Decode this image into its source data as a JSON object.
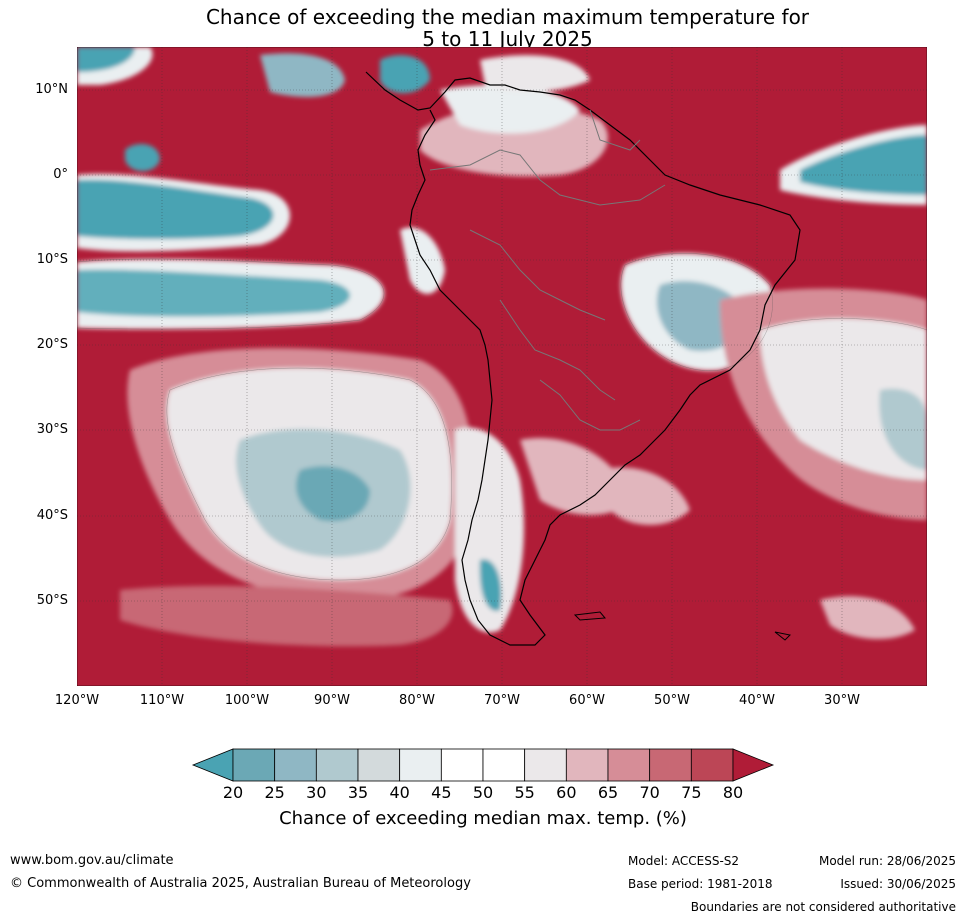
{
  "title": {
    "line1": "Chance of exceeding the median maximum temperature for",
    "line2": "5 to 11 July 2025"
  },
  "map": {
    "lat_labels": [
      "10°N",
      "0°",
      "10°S",
      "20°S",
      "30°S",
      "40°S",
      "50°S"
    ],
    "lon_labels": [
      "120°W",
      "110°W",
      "100°W",
      "90°W",
      "80°W",
      "70°W",
      "60°W",
      "50°W",
      "40°W",
      "30°W"
    ]
  },
  "colorbar": {
    "ticks": [
      "20",
      "25",
      "30",
      "35",
      "40",
      "45",
      "50",
      "55",
      "60",
      "65",
      "70",
      "75",
      "80"
    ],
    "colors": [
      "#4aa3b3",
      "#6ba8b5",
      "#8fb7c4",
      "#b0c9cf",
      "#d3dadc",
      "#eaeff1",
      "#ffffff",
      "#ffffff",
      "#ebe8ea",
      "#e1b6bd",
      "#d68d97",
      "#c86874",
      "#bc4656",
      "#b01c37"
    ],
    "label": "Chance of exceeding median max. temp. (%)"
  },
  "footer": {
    "website": "www.bom.gov.au/climate",
    "copyright": "© Commonwealth of Australia 2025, Australian Bureau of Meteorology",
    "model": "Model: ACCESS-S2",
    "base_period": "Base period: 1981-2018",
    "model_run": "Model run: 28/06/2025",
    "issued": "Issued: 30/06/2025",
    "disclaimer": "Boundaries are not considered authoritative"
  }
}
